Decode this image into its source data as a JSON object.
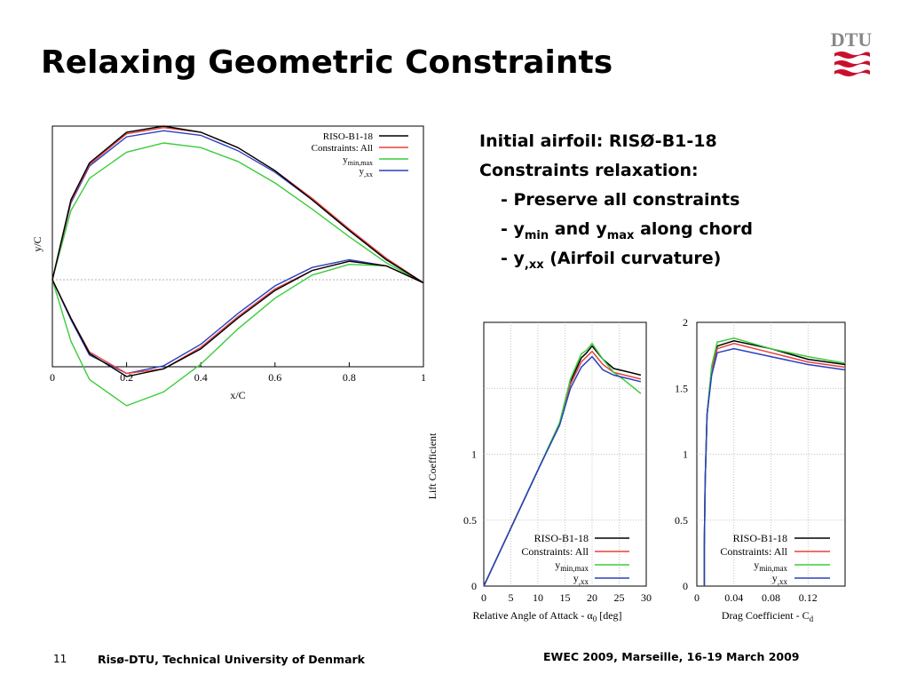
{
  "slide": {
    "title": "Relaxing Geometric Constraints",
    "page_number": "11",
    "footer_org": "Risø-DTU, Technical University of Denmark",
    "footer_conf": "EWEC 2009, Marseille, 16-19 March 2009",
    "logo_text": "DTU"
  },
  "bullets": {
    "line1": "Initial airfoil: RISØ-B1-18",
    "line2": "Constraints relaxation:",
    "line3": "- Preserve all constraints",
    "line4_a": "- y",
    "line4_sub1": "min",
    "line4_b": " and y",
    "line4_sub2": "max",
    "line4_c": " along chord",
    "line5_a": "- y",
    "line5_sub": ",xx",
    "line5_c": " (Airfoil curvature)"
  },
  "colors": {
    "riso": "#000000",
    "all": "#e8413c",
    "minmax": "#3ccc3c",
    "xx": "#2840c0",
    "purple": "#8060a8",
    "dtu_red": "#c8102e",
    "dtu_gray": "#888888"
  },
  "chart_data": [
    {
      "type": "line",
      "xlabel": "x/C",
      "ylabel": "y/C",
      "xlim": [
        0,
        1
      ],
      "xticks": [
        "0",
        "0.2",
        "0.4",
        "0.6",
        "0.8",
        "1"
      ],
      "legend": [
        "RISO-B1-18",
        "Constraints: All",
        "y",
        "y"
      ],
      "legend_subs": [
        "",
        "",
        "min,max",
        ",xx"
      ],
      "legend_position": "top-right",
      "grid": true,
      "series": [
        {
          "name": "RISO-B1-18",
          "upper": [
            [
              0,
              0
            ],
            [
              0.05,
              0.52
            ],
            [
              0.1,
              0.76
            ],
            [
              0.2,
              0.96
            ],
            [
              0.3,
              1.0
            ],
            [
              0.4,
              0.96
            ],
            [
              0.5,
              0.86
            ],
            [
              0.6,
              0.71
            ],
            [
              0.7,
              0.52
            ],
            [
              0.8,
              0.32
            ],
            [
              0.9,
              0.13
            ],
            [
              1,
              -0.02
            ]
          ],
          "lower": [
            [
              0,
              0
            ],
            [
              0.05,
              -0.25
            ],
            [
              0.1,
              -0.48
            ],
            [
              0.2,
              -0.63
            ],
            [
              0.3,
              -0.58
            ],
            [
              0.4,
              -0.45
            ],
            [
              0.5,
              -0.25
            ],
            [
              0.6,
              -0.07
            ],
            [
              0.7,
              0.06
            ],
            [
              0.8,
              0.12
            ],
            [
              0.9,
              0.09
            ],
            [
              1,
              -0.02
            ]
          ]
        },
        {
          "name": "Constraints: All",
          "upper": [
            [
              0,
              0
            ],
            [
              0.05,
              0.51
            ],
            [
              0.1,
              0.75
            ],
            [
              0.2,
              0.95
            ],
            [
              0.3,
              0.99
            ],
            [
              0.4,
              0.96
            ],
            [
              0.5,
              0.86
            ],
            [
              0.6,
              0.71
            ],
            [
              0.7,
              0.53
            ],
            [
              0.8,
              0.33
            ],
            [
              0.9,
              0.14
            ],
            [
              1,
              -0.02
            ]
          ],
          "lower": [
            [
              0,
              0
            ],
            [
              0.05,
              -0.25
            ],
            [
              0.1,
              -0.47
            ],
            [
              0.2,
              -0.61
            ],
            [
              0.3,
              -0.58
            ],
            [
              0.4,
              -0.44
            ],
            [
              0.5,
              -0.24
            ],
            [
              0.6,
              -0.06
            ],
            [
              0.7,
              0.06
            ],
            [
              0.8,
              0.12
            ],
            [
              0.9,
              0.09
            ],
            [
              1,
              -0.02
            ]
          ]
        },
        {
          "name": "y min,max",
          "upper": [
            [
              0,
              0
            ],
            [
              0.05,
              0.45
            ],
            [
              0.1,
              0.66
            ],
            [
              0.2,
              0.83
            ],
            [
              0.3,
              0.89
            ],
            [
              0.4,
              0.86
            ],
            [
              0.5,
              0.77
            ],
            [
              0.6,
              0.63
            ],
            [
              0.7,
              0.46
            ],
            [
              0.8,
              0.28
            ],
            [
              0.9,
              0.11
            ],
            [
              1,
              -0.02
            ]
          ],
          "lower": [
            [
              0,
              0
            ],
            [
              0.05,
              -0.4
            ],
            [
              0.1,
              -0.65
            ],
            [
              0.2,
              -0.82
            ],
            [
              0.3,
              -0.73
            ],
            [
              0.4,
              -0.55
            ],
            [
              0.5,
              -0.32
            ],
            [
              0.6,
              -0.12
            ],
            [
              0.7,
              0.03
            ],
            [
              0.8,
              0.1
            ],
            [
              0.9,
              0.09
            ],
            [
              1,
              -0.02
            ]
          ]
        },
        {
          "name": "y ,xx",
          "upper": [
            [
              0,
              0
            ],
            [
              0.05,
              0.5
            ],
            [
              0.1,
              0.74
            ],
            [
              0.2,
              0.93
            ],
            [
              0.3,
              0.97
            ],
            [
              0.4,
              0.94
            ],
            [
              0.5,
              0.84
            ],
            [
              0.6,
              0.7
            ],
            [
              0.7,
              0.52
            ],
            [
              0.8,
              0.32
            ],
            [
              0.9,
              0.13
            ],
            [
              1,
              -0.02
            ]
          ],
          "lower": [
            [
              0,
              0
            ],
            [
              0.05,
              -0.26
            ],
            [
              0.1,
              -0.49
            ],
            [
              0.2,
              -0.61
            ],
            [
              0.3,
              -0.56
            ],
            [
              0.4,
              -0.42
            ],
            [
              0.5,
              -0.22
            ],
            [
              0.6,
              -0.04
            ],
            [
              0.7,
              0.08
            ],
            [
              0.8,
              0.13
            ],
            [
              0.9,
              0.09
            ],
            [
              1,
              -0.02
            ]
          ]
        }
      ]
    },
    {
      "type": "line",
      "xlabel": "Relative Angle of Attack - α",
      "xlabel_sub": "0",
      "xlabel_tail": " [deg]",
      "ylabel": "Lift Coefficient",
      "xlim": [
        0,
        30
      ],
      "ylim": [
        0,
        2
      ],
      "xticks": [
        "0",
        "5",
        "10",
        "15",
        "20",
        "25",
        "30"
      ],
      "yticks": [
        "0",
        "0.5",
        "1"
      ],
      "grid": true,
      "legend": [
        "RISO-B1-18",
        "Constraints: All",
        "y",
        "y"
      ],
      "legend_subs": [
        "",
        "",
        "min,max",
        ",xx"
      ],
      "legend_position": "bottom-right",
      "series": [
        {
          "name": "RISO-B1-18",
          "points": [
            [
              0,
              0
            ],
            [
              5,
              0.44
            ],
            [
              10,
              0.88
            ],
            [
              14,
              1.23
            ],
            [
              16,
              1.55
            ],
            [
              18,
              1.73
            ],
            [
              19,
              1.77
            ],
            [
              20,
              1.82
            ],
            [
              22,
              1.72
            ],
            [
              24,
              1.65
            ],
            [
              26,
              1.63
            ],
            [
              29,
              1.6
            ]
          ]
        },
        {
          "name": "Constraints: All",
          "points": [
            [
              0,
              0
            ],
            [
              5,
              0.44
            ],
            [
              10,
              0.88
            ],
            [
              14,
              1.23
            ],
            [
              16,
              1.53
            ],
            [
              18,
              1.7
            ],
            [
              19,
              1.74
            ],
            [
              20,
              1.78
            ],
            [
              22,
              1.68
            ],
            [
              24,
              1.62
            ],
            [
              26,
              1.6
            ],
            [
              29,
              1.57
            ]
          ]
        },
        {
          "name": "y min,max",
          "points": [
            [
              0,
              0
            ],
            [
              5,
              0.44
            ],
            [
              10,
              0.88
            ],
            [
              14,
              1.24
            ],
            [
              16,
              1.57
            ],
            [
              18,
              1.76
            ],
            [
              19,
              1.79
            ],
            [
              20,
              1.84
            ],
            [
              22,
              1.72
            ],
            [
              24,
              1.62
            ],
            [
              26,
              1.56
            ],
            [
              29,
              1.46
            ]
          ]
        },
        {
          "name": "y ,xx",
          "points": [
            [
              0,
              0
            ],
            [
              5,
              0.44
            ],
            [
              10,
              0.88
            ],
            [
              14,
              1.22
            ],
            [
              16,
              1.5
            ],
            [
              18,
              1.66
            ],
            [
              19,
              1.7
            ],
            [
              20,
              1.74
            ],
            [
              22,
              1.64
            ],
            [
              24,
              1.6
            ],
            [
              26,
              1.58
            ],
            [
              29,
              1.55
            ]
          ]
        }
      ]
    },
    {
      "type": "line",
      "xlabel": "Drag Coefficient - C",
      "xlabel_sub": "d",
      "xlim": [
        0,
        0.16
      ],
      "ylim": [
        0,
        2
      ],
      "xticks": [
        "0",
        "0.04",
        "0.08",
        "0.12"
      ],
      "yticks": [
        "0",
        "0.5",
        "1",
        "1.5",
        "2"
      ],
      "grid": true,
      "legend": [
        "RISO-B1-18",
        "Constraints: All",
        "y",
        "y"
      ],
      "legend_subs": [
        "",
        "",
        "min,max",
        ",xx"
      ],
      "legend_position": "bottom-right",
      "series": [
        {
          "name": "RISO-B1-18",
          "points": [
            [
              0.008,
              0
            ],
            [
              0.008,
              0.3
            ],
            [
              0.009,
              0.8
            ],
            [
              0.011,
              1.3
            ],
            [
              0.016,
              1.65
            ],
            [
              0.022,
              1.82
            ],
            [
              0.04,
              1.86
            ],
            [
              0.08,
              1.8
            ],
            [
              0.12,
              1.72
            ],
            [
              0.16,
              1.68
            ]
          ]
        },
        {
          "name": "Constraints: All",
          "points": [
            [
              0.008,
              0
            ],
            [
              0.008,
              0.3
            ],
            [
              0.009,
              0.8
            ],
            [
              0.011,
              1.3
            ],
            [
              0.016,
              1.63
            ],
            [
              0.022,
              1.8
            ],
            [
              0.04,
              1.84
            ],
            [
              0.08,
              1.77
            ],
            [
              0.12,
              1.7
            ],
            [
              0.16,
              1.66
            ]
          ]
        },
        {
          "name": "y min,max",
          "points": [
            [
              0.008,
              0
            ],
            [
              0.008,
              0.3
            ],
            [
              0.009,
              0.8
            ],
            [
              0.011,
              1.3
            ],
            [
              0.016,
              1.67
            ],
            [
              0.022,
              1.85
            ],
            [
              0.04,
              1.88
            ],
            [
              0.08,
              1.8
            ],
            [
              0.12,
              1.74
            ],
            [
              0.16,
              1.69
            ]
          ]
        },
        {
          "name": "y ,xx",
          "points": [
            [
              0.008,
              0
            ],
            [
              0.008,
              0.3
            ],
            [
              0.009,
              0.8
            ],
            [
              0.011,
              1.3
            ],
            [
              0.016,
              1.6
            ],
            [
              0.022,
              1.77
            ],
            [
              0.04,
              1.8
            ],
            [
              0.08,
              1.74
            ],
            [
              0.12,
              1.68
            ],
            [
              0.16,
              1.64
            ]
          ]
        }
      ]
    }
  ]
}
